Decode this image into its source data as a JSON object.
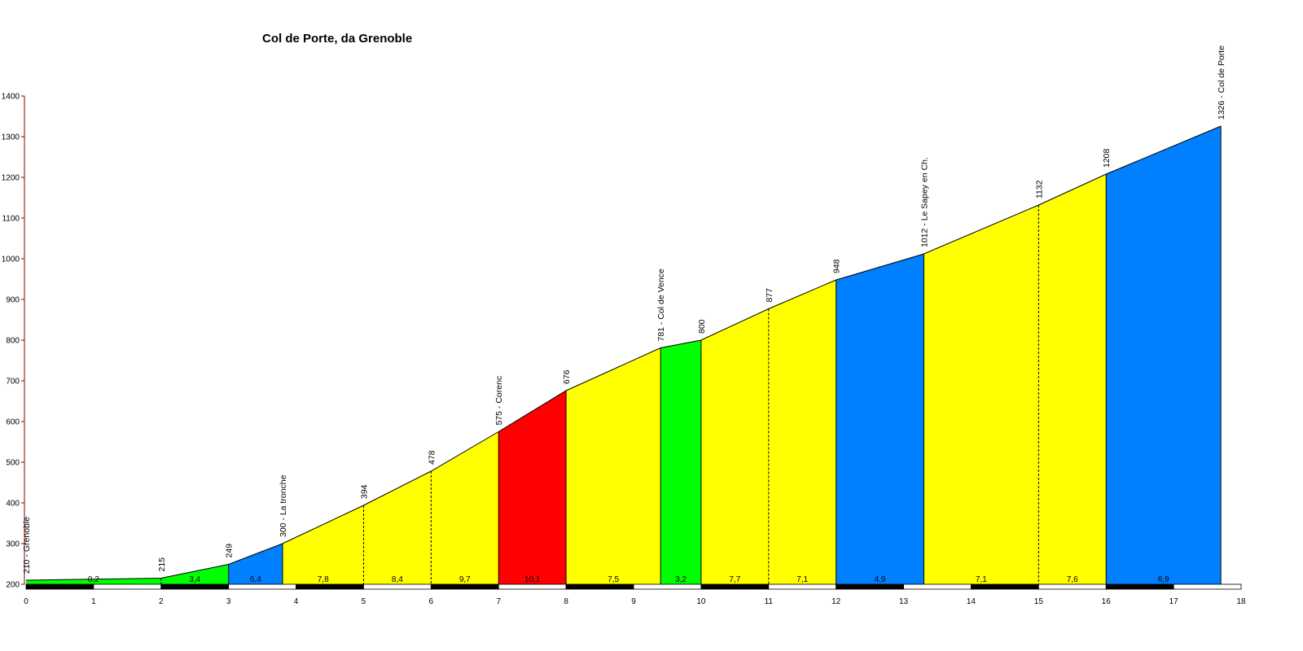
{
  "chart_data": {
    "type": "area",
    "title": "Col de Porte, da Grenoble",
    "xlabel": "",
    "ylabel": "",
    "xlim": [
      0,
      18
    ],
    "ylim": [
      200,
      1400
    ],
    "x_ticks": [
      0,
      1,
      2,
      3,
      4,
      5,
      6,
      7,
      8,
      9,
      10,
      11,
      12,
      13,
      14,
      15,
      16,
      17,
      18
    ],
    "y_ticks": [
      200,
      300,
      400,
      500,
      600,
      700,
      800,
      900,
      1000,
      1100,
      1200,
      1300,
      1400
    ],
    "points": [
      {
        "x": 0,
        "y": 210,
        "label": "210 - Grenoble"
      },
      {
        "x": 2,
        "y": 215,
        "label": "215"
      },
      {
        "x": 3,
        "y": 249,
        "label": "249"
      },
      {
        "x": 3.8,
        "y": 300,
        "label": "300 - La tronche"
      },
      {
        "x": 5,
        "y": 394,
        "label": "394"
      },
      {
        "x": 6,
        "y": 478,
        "label": "478"
      },
      {
        "x": 7,
        "y": 575,
        "label": "575 - Corenc"
      },
      {
        "x": 8,
        "y": 676,
        "label": "676"
      },
      {
        "x": 9.4,
        "y": 781,
        "label": "781 - Col de Vence"
      },
      {
        "x": 10,
        "y": 800,
        "label": "800"
      },
      {
        "x": 11,
        "y": 877,
        "label": "877"
      },
      {
        "x": 12,
        "y": 948,
        "label": "948"
      },
      {
        "x": 13.3,
        "y": 1012,
        "label": "1012 - Le Sapey en Ch."
      },
      {
        "x": 15,
        "y": 1132,
        "label": "1132"
      },
      {
        "x": 16,
        "y": 1208,
        "label": "1208"
      },
      {
        "x": 17.7,
        "y": 1326,
        "label": "1326 - Col de Porte"
      }
    ],
    "segments": [
      {
        "from": 0,
        "to": 2,
        "gradient": "0,2",
        "color": "#00ff00"
      },
      {
        "from": 2,
        "to": 3,
        "gradient": "3,4",
        "color": "#00ff00"
      },
      {
        "from": 3,
        "to": 3.8,
        "gradient": "6,4",
        "color": "#0080ff"
      },
      {
        "from": 3.8,
        "to": 5,
        "gradient": "7,8",
        "color": "#ffff00"
      },
      {
        "from": 5,
        "to": 6,
        "gradient": "8,4",
        "color": "#ffff00"
      },
      {
        "from": 6,
        "to": 7,
        "gradient": "9,7",
        "color": "#ffff00"
      },
      {
        "from": 7,
        "to": 8,
        "gradient": "10,1",
        "color": "#ff0000"
      },
      {
        "from": 8,
        "to": 9.4,
        "gradient": "7,5",
        "color": "#ffff00"
      },
      {
        "from": 9.4,
        "to": 10,
        "gradient": "3,2",
        "color": "#00ff00"
      },
      {
        "from": 10,
        "to": 11,
        "gradient": "7,7",
        "color": "#ffff00"
      },
      {
        "from": 11,
        "to": 12,
        "gradient": "7,1",
        "color": "#ffff00"
      },
      {
        "from": 12,
        "to": 13.3,
        "gradient": "4,9",
        "color": "#0080ff"
      },
      {
        "from": 13.3,
        "to": 15,
        "gradient": "7,1",
        "color": "#ffff00"
      },
      {
        "from": 15,
        "to": 16,
        "gradient": "7,6",
        "color": "#ffff00"
      },
      {
        "from": 16,
        "to": 17.7,
        "gradient": "6,9",
        "color": "#0080ff"
      }
    ],
    "colors": {
      "axis_y": "#800000",
      "outline": "#000000",
      "divider": "#000000"
    },
    "grid": false
  }
}
